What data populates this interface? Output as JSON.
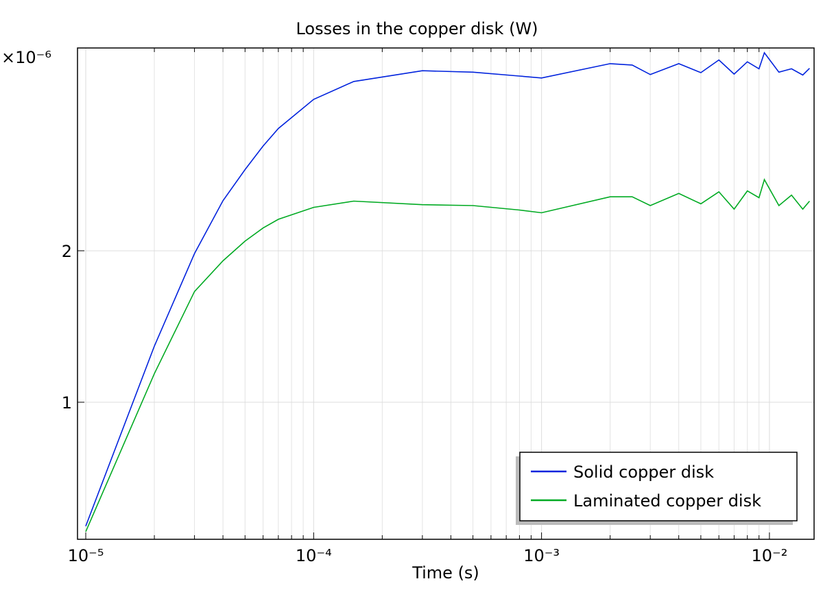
{
  "chart_data": {
    "type": "line",
    "title": "Losses in the copper disk (W)",
    "x_label": "Time (s)",
    "y_multiplier": "×10⁻⁶",
    "xscale": "log",
    "yscale": "log",
    "grid": true,
    "legend_position": "lower right",
    "xlim": [
      9.2e-06,
      0.0157
    ],
    "ylim": [
      0.534,
      5.06
    ],
    "xticks": [
      {
        "value": 1e-05,
        "label": "10⁻⁵"
      },
      {
        "value": 0.0001,
        "label": "10⁻⁴"
      },
      {
        "value": 0.001,
        "label": "10⁻³"
      },
      {
        "value": 0.01,
        "label": "10⁻²"
      }
    ],
    "yticks": [
      1,
      2
    ],
    "x": [
      1e-05,
      2e-05,
      3e-05,
      4e-05,
      5e-05,
      6e-05,
      7e-05,
      0.0001,
      0.00015,
      0.0003,
      0.0005,
      0.0008,
      0.001,
      0.002,
      0.0025,
      0.003,
      0.004,
      0.005,
      0.006,
      0.007,
      0.008,
      0.009,
      0.0095,
      0.011,
      0.0125,
      0.014,
      0.015
    ],
    "series": [
      {
        "name": "Solid copper disk",
        "color": "#0022dd",
        "values": [
          0.567,
          1.293,
          1.975,
          2.515,
          2.9,
          3.23,
          3.5,
          4.0,
          4.34,
          4.56,
          4.53,
          4.45,
          4.41,
          4.71,
          4.68,
          4.48,
          4.71,
          4.52,
          4.79,
          4.49,
          4.75,
          4.6,
          4.95,
          4.53,
          4.6,
          4.47,
          4.61
        ]
      },
      {
        "name": "Laminated copper disk",
        "color": "#00aa22",
        "values": [
          0.553,
          1.14,
          1.66,
          1.91,
          2.09,
          2.22,
          2.31,
          2.44,
          2.51,
          2.47,
          2.46,
          2.41,
          2.38,
          2.56,
          2.56,
          2.46,
          2.6,
          2.48,
          2.62,
          2.42,
          2.63,
          2.55,
          2.77,
          2.46,
          2.58,
          2.42,
          2.51
        ]
      }
    ]
  }
}
